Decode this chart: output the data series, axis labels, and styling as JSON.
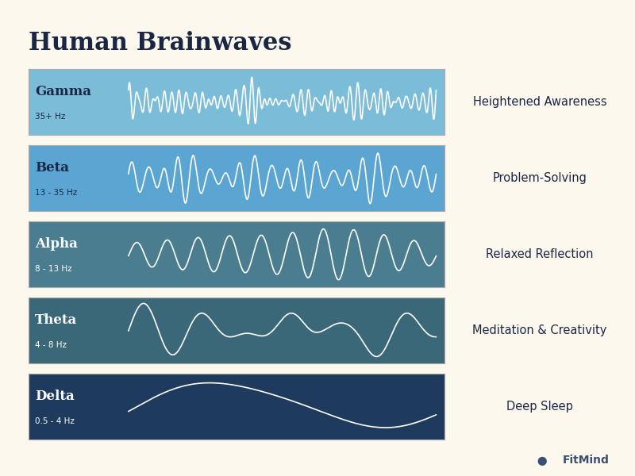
{
  "title": "Human Brainwaves",
  "background_color": "#fdf8ee",
  "title_color": "#1a2744",
  "title_fontsize": 22,
  "rows": [
    {
      "name": "Gamma",
      "freq": "35+ Hz",
      "description": "Heightened Awareness",
      "wave_color": "#ffffff",
      "bg_color": "#7bbdd8",
      "right_bg": "#cfe5f2",
      "freq_type": "gamma",
      "name_color": "#1a2744",
      "desc_color": "#1a2744"
    },
    {
      "name": "Beta",
      "freq": "13 - 35 Hz",
      "description": "Problem-Solving",
      "wave_color": "#ffffff",
      "bg_color": "#5ba5d2",
      "right_bg": "#c8dff0",
      "freq_type": "beta",
      "name_color": "#1a2744",
      "desc_color": "#1a2744"
    },
    {
      "name": "Alpha",
      "freq": "8 - 13 Hz",
      "description": "Relaxed Reflection",
      "wave_color": "#ffffff",
      "bg_color": "#4a7d90",
      "right_bg": "#c5d5da",
      "freq_type": "alpha",
      "name_color": "#ffffff",
      "desc_color": "#1a2744"
    },
    {
      "name": "Theta",
      "freq": "4 - 8 Hz",
      "description": "Meditation & Creativity",
      "wave_color": "#ffffff",
      "bg_color": "#3a6878",
      "right_bg": "#bccdd5",
      "freq_type": "theta",
      "name_color": "#ffffff",
      "desc_color": "#1a2744"
    },
    {
      "name": "Delta",
      "freq": "0.5 - 4 Hz",
      "description": "Deep Sleep",
      "wave_color": "#ffffff",
      "bg_color": "#1e3a5c",
      "right_bg": "#b5c5cc",
      "freq_type": "delta",
      "name_color": "#ffffff",
      "desc_color": "#1a2744"
    }
  ],
  "footer_text": "FitMind",
  "footer_color": "#3a5070"
}
